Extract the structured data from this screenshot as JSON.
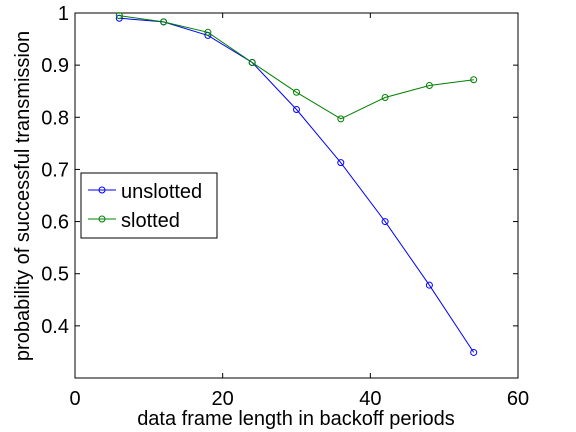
{
  "chart_data": {
    "type": "line",
    "title": "",
    "xlabel": "data frame length in backoff periods",
    "ylabel": "probability of successful transmission",
    "xlim": [
      0,
      60
    ],
    "ylim": [
      0.3,
      1.0
    ],
    "xticks": [
      0,
      20,
      40,
      60
    ],
    "yticks": [
      0.4,
      0.5,
      0.6,
      0.7,
      0.8,
      0.9,
      1
    ],
    "xtick_labels": [
      "0",
      "20",
      "40",
      "60"
    ],
    "ytick_labels": [
      "0.4",
      "0.5",
      "0.6",
      "0.7",
      "0.8",
      "0.9",
      "1"
    ],
    "grid": false,
    "legend_position": "left",
    "x": [
      6,
      12,
      18,
      24,
      30,
      36,
      42,
      48,
      54
    ],
    "series": [
      {
        "name": "unslotted",
        "color": "#0000ff",
        "marker": "circle",
        "values": [
          0.99,
          0.983,
          0.957,
          0.905,
          0.815,
          0.713,
          0.6,
          0.478,
          0.349
        ]
      },
      {
        "name": "slotted",
        "color": "#008000",
        "marker": "circle",
        "values": [
          0.995,
          0.983,
          0.963,
          0.905,
          0.848,
          0.797,
          0.838,
          0.861,
          0.872
        ]
      }
    ]
  }
}
